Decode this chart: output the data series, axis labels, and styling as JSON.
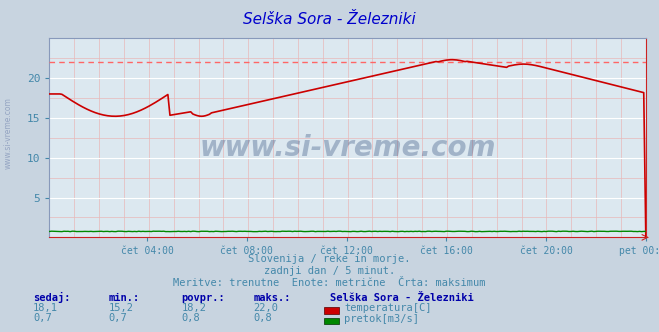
{
  "title": "Selška Sora - Železniki",
  "title_color": "#0000cc",
  "bg_color": "#c8d4e0",
  "plot_bg_color": "#dce8f0",
  "grid_color_major": "#ffffff",
  "grid_color_minor": "#e8b8b8",
  "xlabel_color": "#4488aa",
  "text_color": "#4488aa",
  "line_color_temp": "#cc0000",
  "line_color_flow": "#008800",
  "max_line_color": "#ff6666",
  "ylim": [
    0,
    25
  ],
  "ytick_vals": [
    5,
    10,
    15,
    20
  ],
  "ytick_labels": [
    "5",
    "10",
    "15",
    "20"
  ],
  "xtick_labels": [
    "čet 04:00",
    "čet 08:00",
    "čet 12:00",
    "čet 16:00",
    "čet 20:00",
    "pet 00:00"
  ],
  "max_value": 22.0,
  "subtitle1": "Slovenija / reke in morje.",
  "subtitle2": "zadnji dan / 5 minut.",
  "subtitle3": "Meritve: trenutne  Enote: metrične  Črta: maksimum",
  "table_headers": [
    "sedaj:",
    "min.:",
    "povpr.:",
    "maks.:"
  ],
  "table_row1": [
    "18,1",
    "15,2",
    "18,2",
    "22,0"
  ],
  "table_row2": [
    "0,7",
    "0,7",
    "0,8",
    "0,8"
  ],
  "legend_title": "Selška Sora - Železniki",
  "legend_item1": "temperatura[C]",
  "legend_item2": "pretok[m3/s]",
  "watermark": "www.si-vreme.com"
}
